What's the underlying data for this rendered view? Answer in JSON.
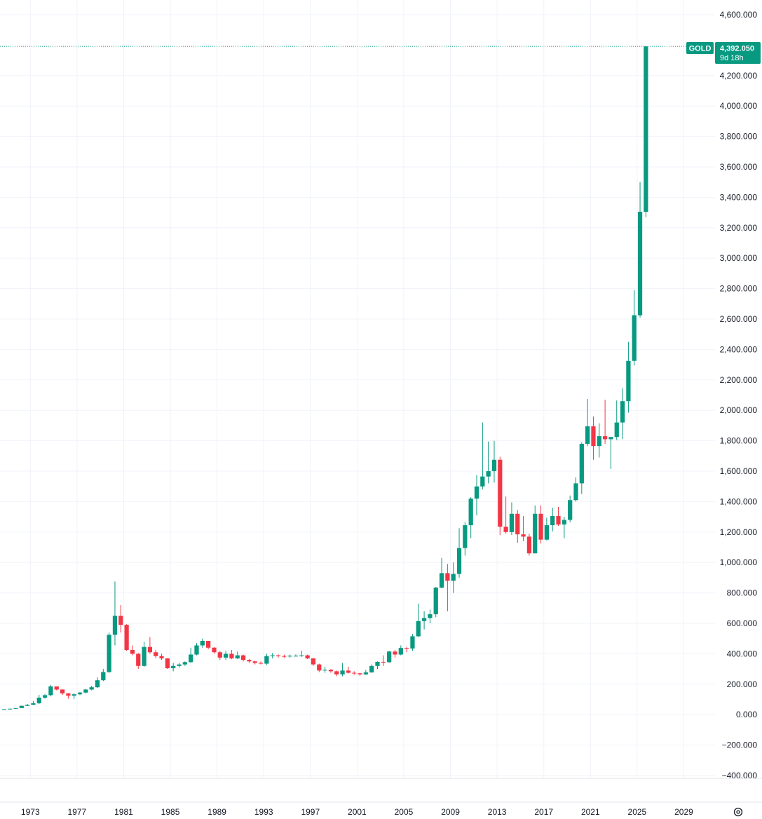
{
  "chart_data": {
    "type": "candlestick",
    "symbol": "GOLD",
    "last_price": "4,392.050",
    "countdown": "9d 18h",
    "colors": {
      "up": "#089981",
      "down": "#f23645",
      "label_bg": "#089981",
      "price_line": "#089981"
    },
    "y_axis": {
      "min": -400,
      "max": 4600,
      "ticks": [
        {
          "value": 4600,
          "label": "4,600.000"
        },
        {
          "value": 4200,
          "label": "4,200.000"
        },
        {
          "value": 4000,
          "label": "4,000.000"
        },
        {
          "value": 3800,
          "label": "3,800.000"
        },
        {
          "value": 3600,
          "label": "3,600.000"
        },
        {
          "value": 3400,
          "label": "3,400.000"
        },
        {
          "value": 3200,
          "label": "3,200.000"
        },
        {
          "value": 3000,
          "label": "3,000.000"
        },
        {
          "value": 2800,
          "label": "2,800.000"
        },
        {
          "value": 2600,
          "label": "2,600.000"
        },
        {
          "value": 2400,
          "label": "2,400.000"
        },
        {
          "value": 2200,
          "label": "2,200.000"
        },
        {
          "value": 2000,
          "label": "2,000.000"
        },
        {
          "value": 1800,
          "label": "1,800.000"
        },
        {
          "value": 1600,
          "label": "1,600.000"
        },
        {
          "value": 1400,
          "label": "1,400.000"
        },
        {
          "value": 1200,
          "label": "1,200.000"
        },
        {
          "value": 1000,
          "label": "1,000.000"
        },
        {
          "value": 800,
          "label": "800.000"
        },
        {
          "value": 600,
          "label": "600.000"
        },
        {
          "value": 400,
          "label": "400.000"
        },
        {
          "value": 200,
          "label": "200.000"
        },
        {
          "value": 0,
          "label": "0.000"
        },
        {
          "value": -200,
          "label": "−200.000"
        },
        {
          "value": -400,
          "label": "−400.000"
        }
      ]
    },
    "x_axis": {
      "start_year": 1970.4,
      "end_year": 2035.7,
      "ticks": [
        "1973",
        "1977",
        "1981",
        "1985",
        "1989",
        "1993",
        "1997",
        "2001",
        "2005",
        "2009",
        "2013",
        "2017",
        "2021",
        "2025",
        "2029"
      ]
    },
    "candles": [
      {
        "t": 1970.75,
        "o": 35,
        "h": 37,
        "l": 34,
        "c": 36
      },
      {
        "t": 1971.25,
        "o": 36,
        "h": 40,
        "l": 35,
        "c": 39
      },
      {
        "t": 1971.75,
        "o": 39,
        "h": 44,
        "l": 38,
        "c": 43
      },
      {
        "t": 1972.25,
        "o": 43,
        "h": 60,
        "l": 43,
        "c": 58
      },
      {
        "t": 1972.75,
        "o": 58,
        "h": 70,
        "l": 56,
        "c": 65
      },
      {
        "t": 1973.25,
        "o": 65,
        "h": 90,
        "l": 64,
        "c": 75
      },
      {
        "t": 1973.75,
        "o": 75,
        "h": 130,
        "l": 70,
        "c": 112
      },
      {
        "t": 1974.25,
        "o": 112,
        "h": 135,
        "l": 105,
        "c": 128
      },
      {
        "t": 1974.75,
        "o": 128,
        "h": 195,
        "l": 120,
        "c": 186
      },
      {
        "t": 1975.25,
        "o": 186,
        "h": 185,
        "l": 160,
        "c": 165
      },
      {
        "t": 1975.75,
        "o": 165,
        "h": 168,
        "l": 130,
        "c": 140
      },
      {
        "t": 1976.25,
        "o": 140,
        "h": 142,
        "l": 105,
        "c": 125
      },
      {
        "t": 1976.75,
        "o": 125,
        "h": 140,
        "l": 103,
        "c": 134
      },
      {
        "t": 1977.25,
        "o": 134,
        "h": 150,
        "l": 128,
        "c": 145
      },
      {
        "t": 1977.75,
        "o": 145,
        "h": 170,
        "l": 140,
        "c": 165
      },
      {
        "t": 1978.25,
        "o": 165,
        "h": 190,
        "l": 160,
        "c": 180
      },
      {
        "t": 1978.75,
        "o": 180,
        "h": 245,
        "l": 175,
        "c": 226
      },
      {
        "t": 1979.25,
        "o": 226,
        "h": 300,
        "l": 220,
        "c": 280
      },
      {
        "t": 1979.75,
        "o": 280,
        "h": 540,
        "l": 275,
        "c": 525
      },
      {
        "t": 1980.25,
        "o": 525,
        "h": 875,
        "l": 455,
        "c": 650
      },
      {
        "t": 1980.75,
        "o": 650,
        "h": 720,
        "l": 540,
        "c": 590
      },
      {
        "t": 1981.25,
        "o": 590,
        "h": 595,
        "l": 420,
        "c": 425
      },
      {
        "t": 1981.75,
        "o": 425,
        "h": 455,
        "l": 390,
        "c": 400
      },
      {
        "t": 1982.25,
        "o": 400,
        "h": 405,
        "l": 300,
        "c": 320
      },
      {
        "t": 1982.75,
        "o": 320,
        "h": 480,
        "l": 315,
        "c": 445
      },
      {
        "t": 1983.25,
        "o": 445,
        "h": 510,
        "l": 400,
        "c": 410
      },
      {
        "t": 1983.75,
        "o": 410,
        "h": 425,
        "l": 370,
        "c": 385
      },
      {
        "t": 1984.25,
        "o": 385,
        "h": 400,
        "l": 360,
        "c": 370
      },
      {
        "t": 1984.75,
        "o": 370,
        "h": 372,
        "l": 300,
        "c": 305
      },
      {
        "t": 1985.25,
        "o": 305,
        "h": 340,
        "l": 285,
        "c": 320
      },
      {
        "t": 1985.75,
        "o": 320,
        "h": 340,
        "l": 310,
        "c": 330
      },
      {
        "t": 1986.25,
        "o": 330,
        "h": 350,
        "l": 320,
        "c": 345
      },
      {
        "t": 1986.75,
        "o": 345,
        "h": 440,
        "l": 340,
        "c": 395
      },
      {
        "t": 1987.25,
        "o": 395,
        "h": 470,
        "l": 390,
        "c": 455
      },
      {
        "t": 1987.75,
        "o": 455,
        "h": 500,
        "l": 440,
        "c": 485
      },
      {
        "t": 1988.25,
        "o": 485,
        "h": 485,
        "l": 430,
        "c": 440
      },
      {
        "t": 1988.75,
        "o": 440,
        "h": 445,
        "l": 400,
        "c": 410
      },
      {
        "t": 1989.25,
        "o": 410,
        "h": 420,
        "l": 360,
        "c": 375
      },
      {
        "t": 1989.75,
        "o": 375,
        "h": 420,
        "l": 360,
        "c": 400
      },
      {
        "t": 1990.25,
        "o": 400,
        "h": 425,
        "l": 365,
        "c": 370
      },
      {
        "t": 1990.75,
        "o": 370,
        "h": 415,
        "l": 365,
        "c": 390
      },
      {
        "t": 1991.25,
        "o": 390,
        "h": 395,
        "l": 350,
        "c": 360
      },
      {
        "t": 1991.75,
        "o": 360,
        "h": 365,
        "l": 340,
        "c": 350
      },
      {
        "t": 1992.25,
        "o": 350,
        "h": 355,
        "l": 330,
        "c": 340
      },
      {
        "t": 1992.75,
        "o": 340,
        "h": 350,
        "l": 330,
        "c": 335
      },
      {
        "t": 1993.25,
        "o": 335,
        "h": 400,
        "l": 326,
        "c": 385
      },
      {
        "t": 1993.75,
        "o": 385,
        "h": 405,
        "l": 370,
        "c": 390
      },
      {
        "t": 1994.25,
        "o": 390,
        "h": 396,
        "l": 375,
        "c": 385
      },
      {
        "t": 1994.75,
        "o": 385,
        "h": 395,
        "l": 372,
        "c": 383
      },
      {
        "t": 1995.25,
        "o": 383,
        "h": 395,
        "l": 375,
        "c": 387
      },
      {
        "t": 1995.75,
        "o": 387,
        "h": 396,
        "l": 382,
        "c": 387
      },
      {
        "t": 1996.25,
        "o": 387,
        "h": 420,
        "l": 380,
        "c": 390
      },
      {
        "t": 1996.75,
        "o": 390,
        "h": 395,
        "l": 365,
        "c": 370
      },
      {
        "t": 1997.25,
        "o": 370,
        "h": 372,
        "l": 320,
        "c": 330
      },
      {
        "t": 1997.75,
        "o": 330,
        "h": 335,
        "l": 280,
        "c": 290
      },
      {
        "t": 1998.25,
        "o": 290,
        "h": 315,
        "l": 275,
        "c": 295
      },
      {
        "t": 1998.75,
        "o": 295,
        "h": 300,
        "l": 275,
        "c": 285
      },
      {
        "t": 1999.25,
        "o": 285,
        "h": 290,
        "l": 253,
        "c": 265
      },
      {
        "t": 1999.75,
        "o": 265,
        "h": 340,
        "l": 252,
        "c": 290
      },
      {
        "t": 2000.25,
        "o": 290,
        "h": 315,
        "l": 270,
        "c": 275
      },
      {
        "t": 2000.75,
        "o": 275,
        "h": 285,
        "l": 262,
        "c": 272
      },
      {
        "t": 2001.25,
        "o": 272,
        "h": 275,
        "l": 255,
        "c": 265
      },
      {
        "t": 2001.75,
        "o": 265,
        "h": 295,
        "l": 260,
        "c": 278
      },
      {
        "t": 2002.25,
        "o": 278,
        "h": 330,
        "l": 275,
        "c": 320
      },
      {
        "t": 2002.75,
        "o": 320,
        "h": 350,
        "l": 300,
        "c": 347
      },
      {
        "t": 2003.25,
        "o": 347,
        "h": 390,
        "l": 320,
        "c": 345
      },
      {
        "t": 2003.75,
        "o": 345,
        "h": 420,
        "l": 340,
        "c": 415
      },
      {
        "t": 2004.25,
        "o": 415,
        "h": 425,
        "l": 375,
        "c": 395
      },
      {
        "t": 2004.75,
        "o": 395,
        "h": 455,
        "l": 390,
        "c": 438
      },
      {
        "t": 2005.25,
        "o": 438,
        "h": 445,
        "l": 410,
        "c": 435
      },
      {
        "t": 2005.75,
        "o": 435,
        "h": 530,
        "l": 420,
        "c": 515
      },
      {
        "t": 2006.25,
        "o": 515,
        "h": 730,
        "l": 510,
        "c": 615
      },
      {
        "t": 2006.75,
        "o": 615,
        "h": 680,
        "l": 560,
        "c": 635
      },
      {
        "t": 2007.25,
        "o": 635,
        "h": 690,
        "l": 600,
        "c": 660
      },
      {
        "t": 2007.75,
        "o": 660,
        "h": 840,
        "l": 640,
        "c": 835
      },
      {
        "t": 2008.25,
        "o": 835,
        "h": 1030,
        "l": 830,
        "c": 930
      },
      {
        "t": 2008.75,
        "o": 930,
        "h": 990,
        "l": 680,
        "c": 880
      },
      {
        "t": 2009.25,
        "o": 880,
        "h": 1000,
        "l": 800,
        "c": 925
      },
      {
        "t": 2009.75,
        "o": 925,
        "h": 1225,
        "l": 900,
        "c": 1095
      },
      {
        "t": 2010.25,
        "o": 1095,
        "h": 1265,
        "l": 1045,
        "c": 1245
      },
      {
        "t": 2010.75,
        "o": 1245,
        "h": 1430,
        "l": 1160,
        "c": 1420
      },
      {
        "t": 2011.25,
        "o": 1420,
        "h": 1575,
        "l": 1310,
        "c": 1500
      },
      {
        "t": 2011.75,
        "o": 1500,
        "h": 1920,
        "l": 1480,
        "c": 1565
      },
      {
        "t": 2012.25,
        "o": 1565,
        "h": 1795,
        "l": 1520,
        "c": 1600
      },
      {
        "t": 2012.75,
        "o": 1600,
        "h": 1800,
        "l": 1525,
        "c": 1675
      },
      {
        "t": 2013.25,
        "o": 1675,
        "h": 1695,
        "l": 1180,
        "c": 1235
      },
      {
        "t": 2013.75,
        "o": 1235,
        "h": 1435,
        "l": 1190,
        "c": 1200
      },
      {
        "t": 2014.25,
        "o": 1200,
        "h": 1395,
        "l": 1180,
        "c": 1320
      },
      {
        "t": 2014.75,
        "o": 1320,
        "h": 1345,
        "l": 1130,
        "c": 1185
      },
      {
        "t": 2015.25,
        "o": 1185,
        "h": 1305,
        "l": 1140,
        "c": 1170
      },
      {
        "t": 2015.75,
        "o": 1170,
        "h": 1190,
        "l": 1045,
        "c": 1060
      },
      {
        "t": 2016.25,
        "o": 1060,
        "h": 1375,
        "l": 1060,
        "c": 1320
      },
      {
        "t": 2016.75,
        "o": 1320,
        "h": 1375,
        "l": 1125,
        "c": 1150
      },
      {
        "t": 2017.25,
        "o": 1150,
        "h": 1295,
        "l": 1145,
        "c": 1245
      },
      {
        "t": 2017.75,
        "o": 1245,
        "h": 1360,
        "l": 1205,
        "c": 1305
      },
      {
        "t": 2018.25,
        "o": 1305,
        "h": 1365,
        "l": 1240,
        "c": 1250
      },
      {
        "t": 2018.75,
        "o": 1250,
        "h": 1300,
        "l": 1160,
        "c": 1280
      },
      {
        "t": 2019.25,
        "o": 1280,
        "h": 1440,
        "l": 1265,
        "c": 1410
      },
      {
        "t": 2019.75,
        "o": 1410,
        "h": 1560,
        "l": 1400,
        "c": 1520
      },
      {
        "t": 2020.25,
        "o": 1520,
        "h": 1790,
        "l": 1450,
        "c": 1780
      },
      {
        "t": 2020.75,
        "o": 1780,
        "h": 2075,
        "l": 1765,
        "c": 1895
      },
      {
        "t": 2021.25,
        "o": 1895,
        "h": 1960,
        "l": 1675,
        "c": 1765
      },
      {
        "t": 2021.75,
        "o": 1765,
        "h": 1915,
        "l": 1690,
        "c": 1830
      },
      {
        "t": 2022.25,
        "o": 1830,
        "h": 2070,
        "l": 1780,
        "c": 1810
      },
      {
        "t": 2022.75,
        "o": 1810,
        "h": 1820,
        "l": 1615,
        "c": 1825
      },
      {
        "t": 2023.25,
        "o": 1825,
        "h": 2065,
        "l": 1805,
        "c": 1920
      },
      {
        "t": 2023.75,
        "o": 1920,
        "h": 2145,
        "l": 1810,
        "c": 2060
      },
      {
        "t": 2024.25,
        "o": 2060,
        "h": 2450,
        "l": 1985,
        "c": 2325
      },
      {
        "t": 2024.75,
        "o": 2325,
        "h": 2790,
        "l": 2295,
        "c": 2625
      },
      {
        "t": 2025.25,
        "o": 2625,
        "h": 3500,
        "l": 2610,
        "c": 3305
      },
      {
        "t": 2025.75,
        "o": 3305,
        "h": 4392,
        "l": 3270,
        "c": 4392
      }
    ]
  }
}
